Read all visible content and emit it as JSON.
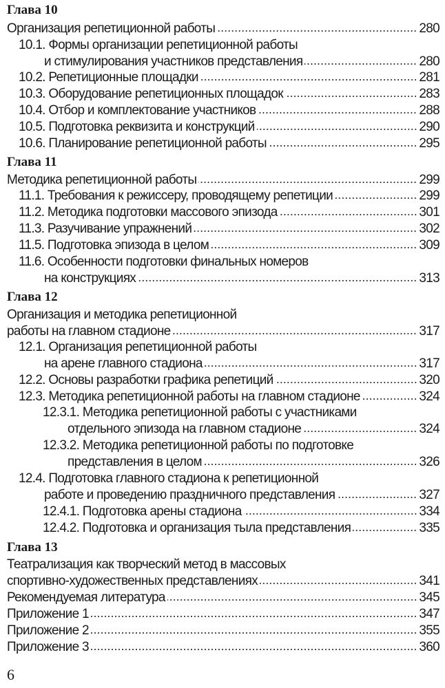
{
  "toc": [
    {
      "text": "Глава 10",
      "level": "head"
    },
    {
      "text": "Организация репетиционной работы",
      "page": "280",
      "level": "l1"
    },
    {
      "text": "10.1. Формы организации репетиционной работы",
      "level": "l2"
    },
    {
      "text": "и стимулирования участников представления",
      "page": "280",
      "level": "l2c"
    },
    {
      "text": "10.2. Репетиционные площадки",
      "page": "281",
      "level": "l2"
    },
    {
      "text": "10.3. Оборудование репетиционных площадок",
      "page": "283",
      "level": "l2"
    },
    {
      "text": "10.4. Отбор и комплектование участников",
      "page": "288",
      "level": "l2"
    },
    {
      "text": "10.5. Подготовка реквизита и конструкций",
      "page": "290",
      "level": "l2"
    },
    {
      "text": "10.6. Планирование репетиционной работы",
      "page": "295",
      "level": "l2"
    },
    {
      "text": "Глава 11",
      "level": "head"
    },
    {
      "text": "Методика репетиционной работы",
      "page": "299",
      "level": "l1"
    },
    {
      "text": "11.1. Требования к режиссеру, проводящему репетиции",
      "page": "299",
      "level": "l2"
    },
    {
      "text": "11.2. Методика подготовки массового эпизода",
      "page": "301",
      "level": "l2"
    },
    {
      "text": "11.3. Разучивание упражнений",
      "page": "302",
      "level": "l2"
    },
    {
      "text": "11.5. Подготовка эпизода в целом",
      "page": "309",
      "level": "l2"
    },
    {
      "text": "11.6. Особенности подготовки финальных номеров",
      "level": "l2"
    },
    {
      "text": "на конструкциях",
      "page": "313",
      "level": "l2c"
    },
    {
      "text": "Глава 12",
      "level": "head"
    },
    {
      "text": "Организация и методика репетиционной",
      "level": "l1"
    },
    {
      "text": "работы на главном стадионе",
      "page": "317",
      "level": "l1"
    },
    {
      "text": "12.1. Организация репетиционной работы",
      "level": "l2"
    },
    {
      "text": "на арене главного стадиона",
      "page": "317",
      "level": "l2c"
    },
    {
      "text": "12.2. Основы разработки графика репетиций",
      "page": "320",
      "level": "l2"
    },
    {
      "text": "12.3. Методика репетиционной работы на главном стадионе",
      "page": "324",
      "level": "l2"
    },
    {
      "text": "12.3.1. Методика репетиционной работы с участниками",
      "level": "l3"
    },
    {
      "text": "отдельного эпизода на главном стадионе",
      "page": "324",
      "level": "l3c"
    },
    {
      "text": "12.3.2. Методика репетиционной работы по подготовке",
      "level": "l3"
    },
    {
      "text": "представления в целом",
      "page": "326",
      "level": "l3c"
    },
    {
      "text": "12.4. Подготовка главного стадиона к репетиционной",
      "level": "l2"
    },
    {
      "text": "работе и проведению праздничного представления",
      "page": "327",
      "level": "l2c"
    },
    {
      "text": "12.4.1. Подготовка арены стадиона",
      "page": "334",
      "level": "l3"
    },
    {
      "text": "12.4.2. Подготовка и организация тыла представления",
      "page": "335",
      "level": "l3"
    },
    {
      "text": "Глава 13",
      "level": "head"
    },
    {
      "text": "Театрализация как творческий метод в массовых",
      "level": "l1"
    },
    {
      "text": "спортивно-художественных представлениях",
      "page": "341",
      "level": "l1"
    },
    {
      "text": "Рекомендуемая литература",
      "page": "345",
      "level": "l1"
    },
    {
      "text": "Приложение 1",
      "page": "347",
      "level": "l1"
    },
    {
      "text": "Приложение 2",
      "page": "355",
      "level": "l1"
    },
    {
      "text": "Приложение 3",
      "page": "360",
      "level": "l1"
    }
  ],
  "folio": "6"
}
